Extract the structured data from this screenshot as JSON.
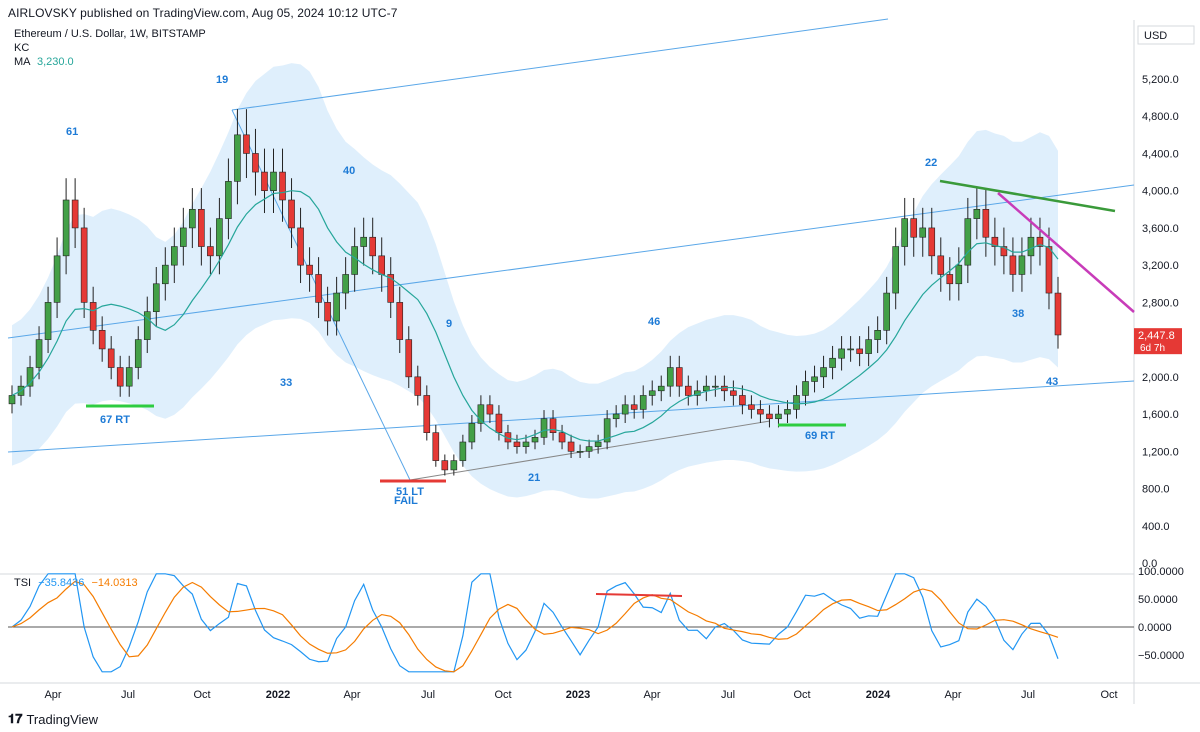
{
  "header": {
    "published_by": "AIRLOVSKY published on TradingView.com, Aug 05, 2024 10:12 UTC-7"
  },
  "legend": {
    "symbol": "Ethereum / U.S. Dollar, 1W, BITSTAMP",
    "indicator_kc": "KC",
    "ma_label": "MA",
    "ma_value": "3,230.0",
    "tsi_label": "TSI",
    "tsi_value1": "−35.8436",
    "tsi_value2": "−14.0313"
  },
  "price_axis": {
    "currency": "USD",
    "ticks": [
      "5,200.0",
      "4,800.0",
      "4,400.0",
      "4,000.0",
      "3,600.0",
      "3,200.0",
      "2,800.0",
      "2,000.0",
      "1,600.0",
      "1,200.0",
      "800.0",
      "400.0",
      "0.0"
    ],
    "last_price": "2,447.8",
    "countdown": "6d 7h"
  },
  "tsi_axis": {
    "ticks": [
      "100.0000",
      "50.0000",
      "0.0000",
      "−50.0000"
    ]
  },
  "time_axis": {
    "labels": [
      "Apr",
      "Jul",
      "Oct",
      "2022",
      "Apr",
      "Jul",
      "Oct",
      "2023",
      "Apr",
      "Jul",
      "Oct",
      "2024",
      "Apr",
      "Jul",
      "Oct"
    ]
  },
  "annotations": [
    {
      "text": "61"
    },
    {
      "text": "19"
    },
    {
      "text": "40"
    },
    {
      "text": "33"
    },
    {
      "text": "9"
    },
    {
      "text": "46"
    },
    {
      "text": "21"
    },
    {
      "text": "22"
    },
    {
      "text": "38"
    },
    {
      "text": "43"
    },
    {
      "text": "67 RT"
    },
    {
      "text": "51 LT"
    },
    {
      "text": "FAIL"
    },
    {
      "text": "69 RT"
    }
  ],
  "footer": {
    "brand": "TradingView"
  },
  "colors": {
    "up": "#43a047",
    "down": "#e53935",
    "channel": "#5aa7e8",
    "kc_fill": "#d9ecfb",
    "ma": "#26a69a",
    "tsi": "#2196f3",
    "signal": "#f57c00",
    "green_mark": "#2ecc40",
    "red_mark": "#e53935",
    "pink_line": "#c83cb9",
    "green_line": "#3a9a3a"
  },
  "chart_data": {
    "type": "candlestick",
    "title": "Ethereum / U.S. Dollar, 1W, BITSTAMP",
    "ylim": [
      0,
      5400
    ],
    "ohlc_closes_approx": [
      1800,
      1900,
      2100,
      2400,
      2800,
      3300,
      3900,
      3600,
      2800,
      2500,
      2300,
      2100,
      1900,
      2100,
      2400,
      2700,
      3000,
      3200,
      3400,
      3600,
      3800,
      3400,
      3300,
      3700,
      4100,
      4600,
      4400,
      4200,
      4000,
      4200,
      3900,
      3600,
      3200,
      3100,
      2800,
      2600,
      2900,
      3100,
      3400,
      3500,
      3300,
      3100,
      2800,
      2400,
      2000,
      1800,
      1400,
      1100,
      1000,
      1100,
      1300,
      1500,
      1700,
      1600,
      1400,
      1300,
      1250,
      1300,
      1350,
      1550,
      1400,
      1300,
      1200,
      1200,
      1250,
      1300,
      1550,
      1600,
      1700,
      1650,
      1800,
      1850,
      1900,
      2100,
      1900,
      1800,
      1850,
      1900,
      1900,
      1850,
      1800,
      1700,
      1650,
      1600,
      1550,
      1600,
      1650,
      1800,
      1950,
      2000,
      2100,
      2200,
      2300,
      2300,
      2250,
      2400,
      2500,
      2900,
      3400,
      3700,
      3500,
      3600,
      3300,
      3100,
      3000,
      3200,
      3700,
      3800,
      3500,
      3400,
      3300,
      3100,
      3300,
      3500,
      3400,
      2900,
      2450
    ],
    "tsi": {
      "series_names": [
        "TSI",
        "Signal"
      ],
      "last": [
        -35.8436,
        -14.0313
      ]
    }
  }
}
